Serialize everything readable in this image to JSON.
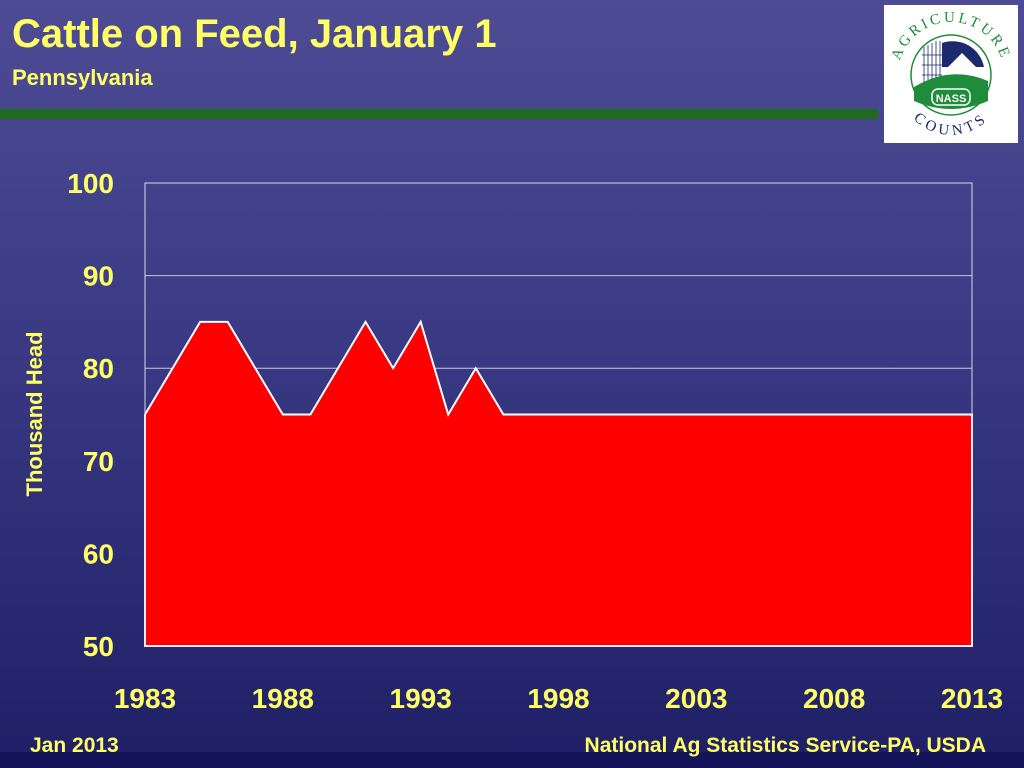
{
  "header": {
    "title": "Cattle on Feed, January 1",
    "subtitle": "Pennsylvania"
  },
  "logo": {
    "top_text": "AGRICULTURE",
    "bottom_text": "COUNTS",
    "badge_text": "NASS",
    "colors": {
      "green": "#1e8c3a",
      "navy": "#1a2a6c"
    }
  },
  "footer": {
    "left": "Jan 2013",
    "right": "National Ag Statistics Service-PA, USDA"
  },
  "colors": {
    "area_fill": "#ff0000",
    "area_stroke": "#ffffff",
    "text": "#ffff66",
    "rule": "#1f6b1f"
  },
  "chart_data": {
    "type": "area",
    "title": "Cattle on Feed, January 1",
    "subtitle": "Pennsylvania",
    "xlabel": "",
    "ylabel": "Thousand Head",
    "xlim": [
      1983,
      2013
    ],
    "ylim": [
      50,
      100
    ],
    "x_ticks": [
      1983,
      1988,
      1993,
      1998,
      2003,
      2008,
      2013
    ],
    "y_ticks": [
      50,
      60,
      70,
      80,
      90,
      100
    ],
    "grid": "horizontal",
    "legend": "none",
    "x": [
      1983,
      1984,
      1985,
      1986,
      1987,
      1988,
      1989,
      1990,
      1991,
      1992,
      1993,
      1994,
      1995,
      1996,
      1997,
      1998,
      1999,
      2000,
      2001,
      2002,
      2003,
      2004,
      2005,
      2006,
      2007,
      2008,
      2009,
      2010,
      2011,
      2012,
      2013
    ],
    "series": [
      {
        "values": [
          75,
          80,
          85,
          85,
          80,
          75,
          75,
          80,
          85,
          80,
          85,
          75,
          80,
          75,
          75,
          75,
          75,
          75,
          75,
          75,
          75,
          75,
          75,
          75,
          75,
          75,
          75,
          75,
          75,
          75,
          75
        ]
      }
    ]
  }
}
